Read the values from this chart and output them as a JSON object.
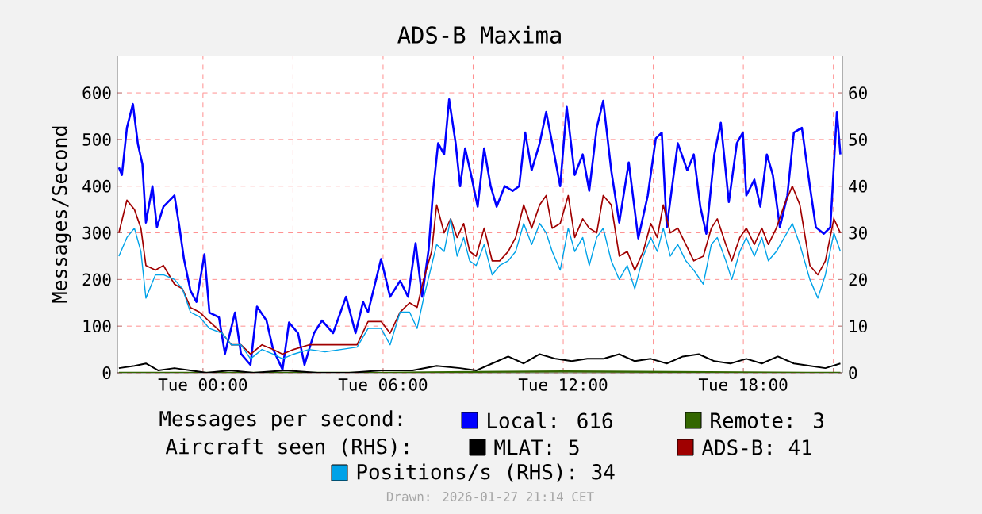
{
  "chart_data": {
    "type": "line",
    "title": "ADS-B Maxima",
    "ylabel": "Messages/Second",
    "annotations": [
      "Messages per second:",
      "Aircraft seen (RHS):",
      "Drawn: 2026-01-27 21:14 CET"
    ],
    "xlim": [
      "2026-01-26T21:09",
      "2026-01-27T21:18"
    ],
    "ylim": [
      0,
      680
    ],
    "y2lim": [
      0,
      68
    ],
    "xticks": [
      {
        "value": "2026-01-27T00:00",
        "label": "Tue 00:00"
      },
      {
        "value": "2026-01-27T03:00",
        "label": null
      },
      {
        "value": "2026-01-27T06:00",
        "label": "Tue 06:00"
      },
      {
        "value": "2026-01-27T09:00",
        "label": null
      },
      {
        "value": "2026-01-27T12:00",
        "label": "Tue 12:00"
      },
      {
        "value": "2026-01-27T15:00",
        "label": null
      },
      {
        "value": "2026-01-27T18:00",
        "label": "Tue 18:00"
      },
      {
        "value": "2026-01-27T21:00",
        "label": null
      }
    ],
    "yticks": [
      0,
      100,
      200,
      300,
      400,
      500,
      600
    ],
    "y2ticks": [
      0,
      10,
      20,
      30,
      40,
      50,
      60
    ],
    "grid": true,
    "legend": "bottom",
    "x": [
      "2026-01-26T21:12",
      "2026-01-26T21:28",
      "2026-01-26T21:43",
      "2026-01-26T21:56",
      "2026-01-26T22:06",
      "2026-01-26T22:25",
      "2026-01-26T22:41",
      "2026-01-26T23:03",
      "2026-01-26T23:19",
      "2026-01-26T23:35",
      "2026-01-26T23:53",
      "2026-01-27T00:13",
      "2026-01-27T00:38",
      "2026-01-27T00:57",
      "2026-01-27T01:16",
      "2026-01-27T01:35",
      "2026-01-27T01:58",
      "2026-01-27T02:20",
      "2026-01-27T02:39",
      "2026-01-27T03:01",
      "2026-01-27T03:32",
      "2026-01-27T04:04",
      "2026-01-27T04:36",
      "2026-01-27T05:08",
      "2026-01-27T05:30",
      "2026-01-27T05:56",
      "2026-01-27T06:14",
      "2026-01-27T06:34",
      "2026-01-27T06:53",
      "2026-01-27T07:08",
      "2026-01-27T07:21",
      "2026-01-27T07:37",
      "2026-01-27T07:47",
      "2026-01-27T08:02",
      "2026-01-27T08:15",
      "2026-01-27T08:28",
      "2026-01-27T08:41",
      "2026-01-27T08:53",
      "2026-01-27T09:06",
      "2026-01-27T09:22",
      "2026-01-27T09:38",
      "2026-01-27T09:53",
      "2026-01-27T10:10",
      "2026-01-27T10:25",
      "2026-01-27T10:41",
      "2026-01-27T10:57",
      "2026-01-27T11:13",
      "2026-01-27T11:26",
      "2026-01-27T11:38",
      "2026-01-27T11:54",
      "2026-01-27T12:10",
      "2026-01-27T12:23",
      "2026-01-27T12:39",
      "2026-01-27T12:52",
      "2026-01-27T13:07",
      "2026-01-27T13:20",
      "2026-01-27T13:36",
      "2026-01-27T13:52",
      "2026-01-27T14:08",
      "2026-01-27T14:23",
      "2026-01-27T14:40",
      "2026-01-27T14:55",
      "2026-01-27T15:08",
      "2026-01-27T15:20",
      "2026-01-27T15:34",
      "2026-01-27T15:49",
      "2026-01-27T16:05",
      "2026-01-27T16:21",
      "2026-01-27T16:40",
      "2026-01-27T16:56",
      "2026-01-27T17:08",
      "2026-01-27T17:25",
      "2026-01-27T17:37",
      "2026-01-27T17:53",
      "2026-01-27T18:06",
      "2026-01-27T18:22",
      "2026-01-27T18:37",
      "2026-01-27T18:50",
      "2026-01-27T19:06",
      "2026-01-27T19:22",
      "2026-01-27T19:38",
      "2026-01-27T19:53",
      "2026-01-27T20:13",
      "2026-01-27T20:29",
      "2026-01-27T20:44",
      "2026-01-27T21:01",
      "2026-01-27T21:14"
    ],
    "series": [
      {
        "name": "Local: 616",
        "color": "#0000ff",
        "x": [
          "2026-01-26T21:12",
          "2026-01-26T21:18",
          "2026-01-26T21:28",
          "2026-01-26T21:40",
          "2026-01-26T21:50",
          "2026-01-26T21:59",
          "2026-01-26T22:06",
          "2026-01-26T22:19",
          "2026-01-26T22:28",
          "2026-01-26T22:41",
          "2026-01-26T23:03",
          "2026-01-26T23:13",
          "2026-01-26T23:22",
          "2026-01-26T23:35",
          "2026-01-26T23:47",
          "2026-01-27T00:03",
          "2026-01-27T00:13",
          "2026-01-27T00:32",
          "2026-01-27T00:44",
          "2026-01-27T01:04",
          "2026-01-27T01:16",
          "2026-01-27T01:35",
          "2026-01-27T01:48",
          "2026-01-27T02:07",
          "2026-01-27T02:20",
          "2026-01-27T02:39",
          "2026-01-27T02:52",
          "2026-01-27T03:10",
          "2026-01-27T03:23",
          "2026-01-27T03:42",
          "2026-01-27T03:58",
          "2026-01-27T04:20",
          "2026-01-27T04:46",
          "2026-01-27T05:05",
          "2026-01-27T05:20",
          "2026-01-27T05:30",
          "2026-01-27T05:56",
          "2026-01-27T06:14",
          "2026-01-27T06:34",
          "2026-01-27T06:50",
          "2026-01-27T07:05",
          "2026-01-27T07:18",
          "2026-01-27T07:31",
          "2026-01-27T07:40",
          "2026-01-27T07:50",
          "2026-01-27T08:02",
          "2026-01-27T08:12",
          "2026-01-27T08:25",
          "2026-01-27T08:34",
          "2026-01-27T08:44",
          "2026-01-27T08:56",
          "2026-01-27T09:09",
          "2026-01-27T09:22",
          "2026-01-27T09:35",
          "2026-01-27T09:47",
          "2026-01-27T10:03",
          "2026-01-27T10:19",
          "2026-01-27T10:32",
          "2026-01-27T10:44",
          "2026-01-27T10:57",
          "2026-01-27T11:13",
          "2026-01-27T11:26",
          "2026-01-27T11:38",
          "2026-01-27T11:54",
          "2026-01-27T12:07",
          "2026-01-27T12:23",
          "2026-01-27T12:39",
          "2026-01-27T12:52",
          "2026-01-27T13:07",
          "2026-01-27T13:20",
          "2026-01-27T13:36",
          "2026-01-27T13:52",
          "2026-01-27T14:11",
          "2026-01-27T14:30",
          "2026-01-27T14:49",
          "2026-01-27T15:05",
          "2026-01-27T15:17",
          "2026-01-27T15:27",
          "2026-01-27T15:49",
          "2026-01-27T16:08",
          "2026-01-27T16:21",
          "2026-01-27T16:34",
          "2026-01-27T16:46",
          "2026-01-27T17:02",
          "2026-01-27T17:15",
          "2026-01-27T17:31",
          "2026-01-27T17:47",
          "2026-01-27T17:59",
          "2026-01-27T18:06",
          "2026-01-27T18:22",
          "2026-01-27T18:34",
          "2026-01-27T18:47",
          "2026-01-27T18:59",
          "2026-01-27T19:13",
          "2026-01-27T19:28",
          "2026-01-27T19:41",
          "2026-01-27T19:57",
          "2026-01-27T20:13",
          "2026-01-27T20:25",
          "2026-01-27T20:41",
          "2026-01-27T20:54",
          "2026-01-27T21:07",
          "2026-01-27T21:14"
        ],
        "values": [
          440,
          424,
          525,
          576,
          490,
          447,
          322,
          400,
          312,
          356,
          380,
          312,
          244,
          176,
          152,
          254,
          129,
          119,
          41,
          129,
          41,
          17,
          142,
          112,
          51,
          7,
          108,
          85,
          17,
          85,
          112,
          85,
          163,
          85,
          152,
          130,
          244,
          163,
          197,
          163,
          278,
          163,
          264,
          390,
          492,
          468,
          586,
          492,
          400,
          481,
          424,
          356,
          481,
          400,
          356,
          400,
          390,
          400,
          515,
          434,
          492,
          559,
          492,
          400,
          570,
          424,
          468,
          390,
          525,
          583,
          434,
          322,
          451,
          288,
          380,
          502,
          515,
          312,
          492,
          434,
          468,
          356,
          298,
          468,
          536,
          366,
          492,
          515,
          380,
          414,
          356,
          468,
          424,
          312,
          380,
          515,
          525,
          400,
          312,
          298,
          312,
          559,
          468
        ]
      },
      {
        "name": "Remote: 3",
        "color": "#336600",
        "x": [
          "2026-01-26T21:12",
          "2026-01-27T03:00",
          "2026-01-27T06:00",
          "2026-01-27T09:00",
          "2026-01-27T12:00",
          "2026-01-27T15:00",
          "2026-01-27T18:00",
          "2026-01-27T21:14"
        ],
        "values": [
          0,
          0,
          0,
          2,
          3,
          2,
          1,
          0
        ]
      },
      {
        "name": "MLAT: 5",
        "color": "#000000",
        "axis": "y2",
        "x": [
          "2026-01-26T21:12",
          "2026-01-26T21:43",
          "2026-01-26T22:06",
          "2026-01-26T22:31",
          "2026-01-26T23:03",
          "2026-01-26T23:35",
          "2026-01-27T00:07",
          "2026-01-27T00:54",
          "2026-01-27T01:41",
          "2026-01-27T02:45",
          "2026-01-27T03:49",
          "2026-01-27T04:52",
          "2026-01-27T05:56",
          "2026-01-27T06:59",
          "2026-01-27T07:47",
          "2026-01-27T08:34",
          "2026-01-27T09:06",
          "2026-01-27T09:38",
          "2026-01-27T10:10",
          "2026-01-27T10:41",
          "2026-01-27T11:13",
          "2026-01-27T11:45",
          "2026-01-27T12:17",
          "2026-01-27T12:48",
          "2026-01-27T13:20",
          "2026-01-27T13:52",
          "2026-01-27T14:23",
          "2026-01-27T14:55",
          "2026-01-27T15:27",
          "2026-01-27T15:59",
          "2026-01-27T16:31",
          "2026-01-27T17:02",
          "2026-01-27T17:34",
          "2026-01-27T18:06",
          "2026-01-27T18:37",
          "2026-01-27T19:09",
          "2026-01-27T19:41",
          "2026-01-27T20:13",
          "2026-01-27T20:44",
          "2026-01-27T21:14"
        ],
        "values": [
          1,
          1.5,
          2,
          0.5,
          1,
          0.5,
          0,
          0.5,
          0,
          0.5,
          0,
          0,
          0.5,
          0.5,
          1.5,
          1,
          0.5,
          2,
          3.5,
          2,
          4,
          3,
          2.5,
          3,
          3,
          4,
          2.5,
          3,
          2,
          3.5,
          4,
          2.5,
          2,
          3,
          2,
          3.5,
          2,
          1.5,
          1,
          2
        ]
      },
      {
        "name": "ADS-B: 41",
        "color": "#a00000",
        "axis": "y2",
        "values": [
          30,
          37,
          35,
          31,
          23,
          22,
          23,
          19,
          18,
          14,
          13,
          11,
          8.5,
          6,
          6,
          4,
          6,
          5,
          4,
          5,
          6,
          6,
          6,
          6,
          11,
          11,
          8.5,
          13,
          15,
          14,
          20,
          26,
          36,
          30,
          33,
          29,
          32,
          26,
          25,
          31,
          24,
          24,
          26,
          29,
          36,
          31,
          36,
          38,
          31,
          32,
          38,
          29,
          33,
          31,
          30,
          38,
          36,
          25,
          26,
          22,
          26,
          32,
          29,
          36,
          30,
          31,
          27.5,
          24,
          25,
          31,
          33,
          27.5,
          24,
          29,
          31,
          27.5,
          31,
          27.5,
          31,
          36,
          40,
          36,
          23,
          21,
          24,
          33,
          30
        ]
      },
      {
        "name": "Positions/s (RHS): 34",
        "color": "#00a2e8",
        "axis": "y2",
        "values": [
          25,
          29,
          31,
          26,
          16,
          21,
          21,
          20,
          18,
          13,
          12,
          9.5,
          8.5,
          6,
          6,
          3,
          5,
          4,
          3,
          4,
          5,
          4.5,
          5,
          5.5,
          9.5,
          9.5,
          6,
          13,
          13,
          9.5,
          16,
          23,
          27.5,
          26,
          33,
          25,
          29,
          24,
          23,
          27.5,
          21,
          23,
          24,
          26,
          32,
          27.5,
          32,
          30,
          26,
          22,
          31,
          26,
          29,
          23,
          29,
          31,
          24,
          20,
          23,
          18,
          25,
          29,
          26,
          31,
          25,
          27.5,
          24,
          22,
          19,
          27.5,
          29,
          24,
          20,
          26,
          29,
          25,
          29,
          24,
          26,
          29,
          32,
          27.5,
          20,
          16,
          21,
          30,
          26
        ]
      }
    ]
  }
}
